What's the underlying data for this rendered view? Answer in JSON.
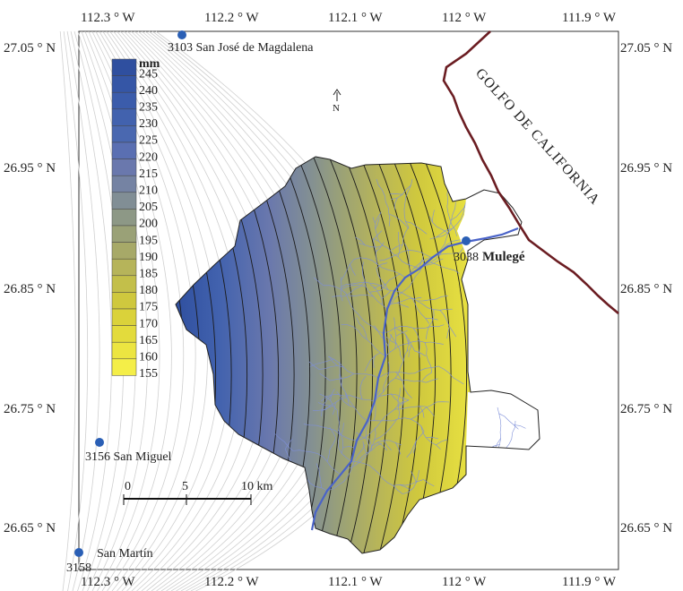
{
  "map": {
    "lon_ticks": [
      "112.3 ° W",
      "112.2 ° W",
      "112.1 ° W",
      "112 ° W",
      "111.9 ° W"
    ],
    "lat_ticks": [
      "27.05 ° N",
      "26.95 ° N",
      "26.85 ° N",
      "26.75 ° N",
      "26.65 ° N"
    ],
    "legend": {
      "unit": "mm",
      "values": [
        "245",
        "240",
        "235",
        "230",
        "225",
        "220",
        "215",
        "210",
        "205",
        "200",
        "195",
        "190",
        "185",
        "180",
        "175",
        "170",
        "165",
        "160",
        "155"
      ],
      "colors": [
        "#2f4f9f",
        "#3556a6",
        "#3b5cab",
        "#4262ae",
        "#4a68b0",
        "#5a6fb2",
        "#6a78ad",
        "#7583a3",
        "#818e95",
        "#8d9886",
        "#9aa177",
        "#a7a968",
        "#b6b45a",
        "#c3bf4a",
        "#cfc83e",
        "#dad23a",
        "#e3db3c",
        "#ece541",
        "#f4ee48"
      ]
    },
    "north_label": "N",
    "sea_label": "GOLFO DE CALIFORNIA",
    "stations": [
      {
        "name": "3103 San José de Magdalena"
      },
      {
        "name": "3156 San Miguel"
      },
      {
        "name": "San Martín",
        "id": "3158"
      },
      {
        "id": "3038",
        "name": "Mulegé"
      }
    ],
    "scale_bar": {
      "labels": [
        "0",
        "5",
        "10 km"
      ]
    },
    "colors": {
      "coast": "#6b1d22",
      "station": "#2a5fb5",
      "river": "#4a63c8",
      "stream": "#7e8fd8"
    }
  }
}
